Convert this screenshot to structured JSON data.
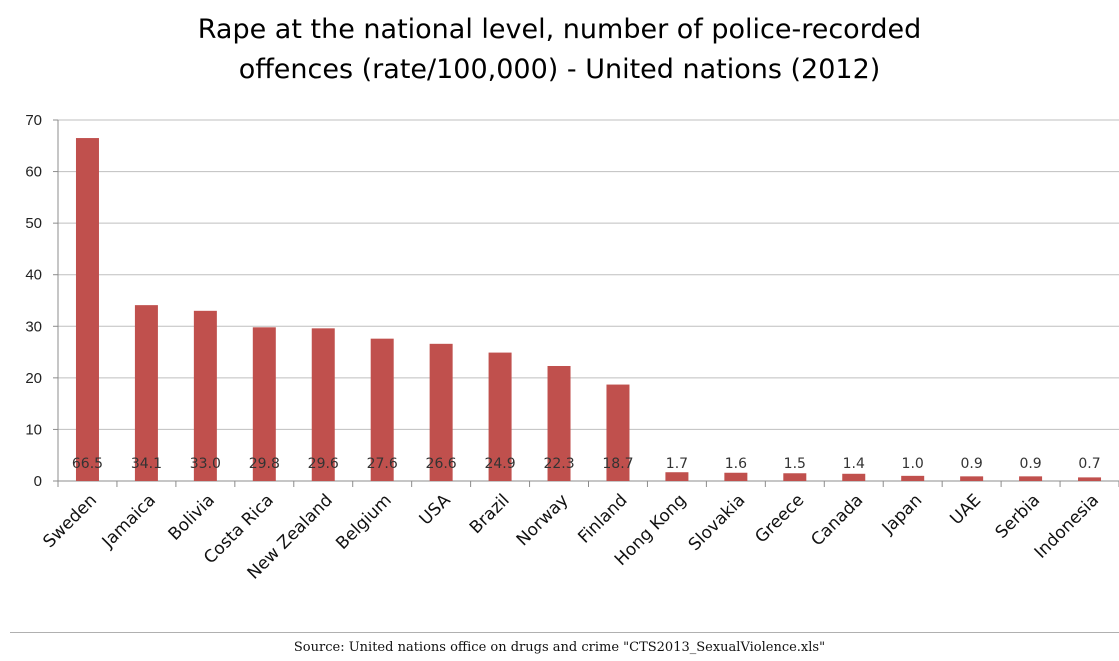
{
  "chart_data": {
    "type": "bar",
    "title_lines": [
      "Rape at the national level, number of police-recorded",
      "offences (rate/100,000) - United nations (2012)"
    ],
    "categories": [
      "Sweden",
      "Jamaica",
      "Bolivia",
      "Costa Rica",
      "New Zealand",
      "Belgium",
      "USA",
      "Brazil",
      "Norway",
      "Finland",
      "Hong Kong",
      "Slovakia",
      "Greece",
      "Canada",
      "Japan",
      "UAE",
      "Serbia",
      "Indonesia"
    ],
    "values": [
      66.5,
      34.1,
      33.0,
      29.8,
      29.6,
      27.6,
      26.6,
      24.9,
      22.3,
      18.7,
      1.7,
      1.6,
      1.5,
      1.4,
      1.0,
      0.9,
      0.9,
      0.7
    ],
    "data_labels": [
      "66.5",
      "34.1",
      "33.0",
      "29.8",
      "29.6",
      "27.6",
      "26.6",
      "24.9",
      "22.3",
      "18.7",
      "1.7",
      "1.6",
      "1.5",
      "1.4",
      "1.0",
      "0.9",
      "0.9",
      "0.7"
    ],
    "ylim": [
      0,
      70
    ],
    "yticks": [
      0,
      10,
      20,
      30,
      40,
      50,
      60,
      70
    ],
    "xlabel": "",
    "ylabel": "",
    "grid": true,
    "legend": false,
    "bar_color": "#c0504d",
    "grid_color": "#bfbfbf"
  },
  "source": "Source: United nations office on drugs and crime \"CTS2013_SexualViolence.xls\""
}
